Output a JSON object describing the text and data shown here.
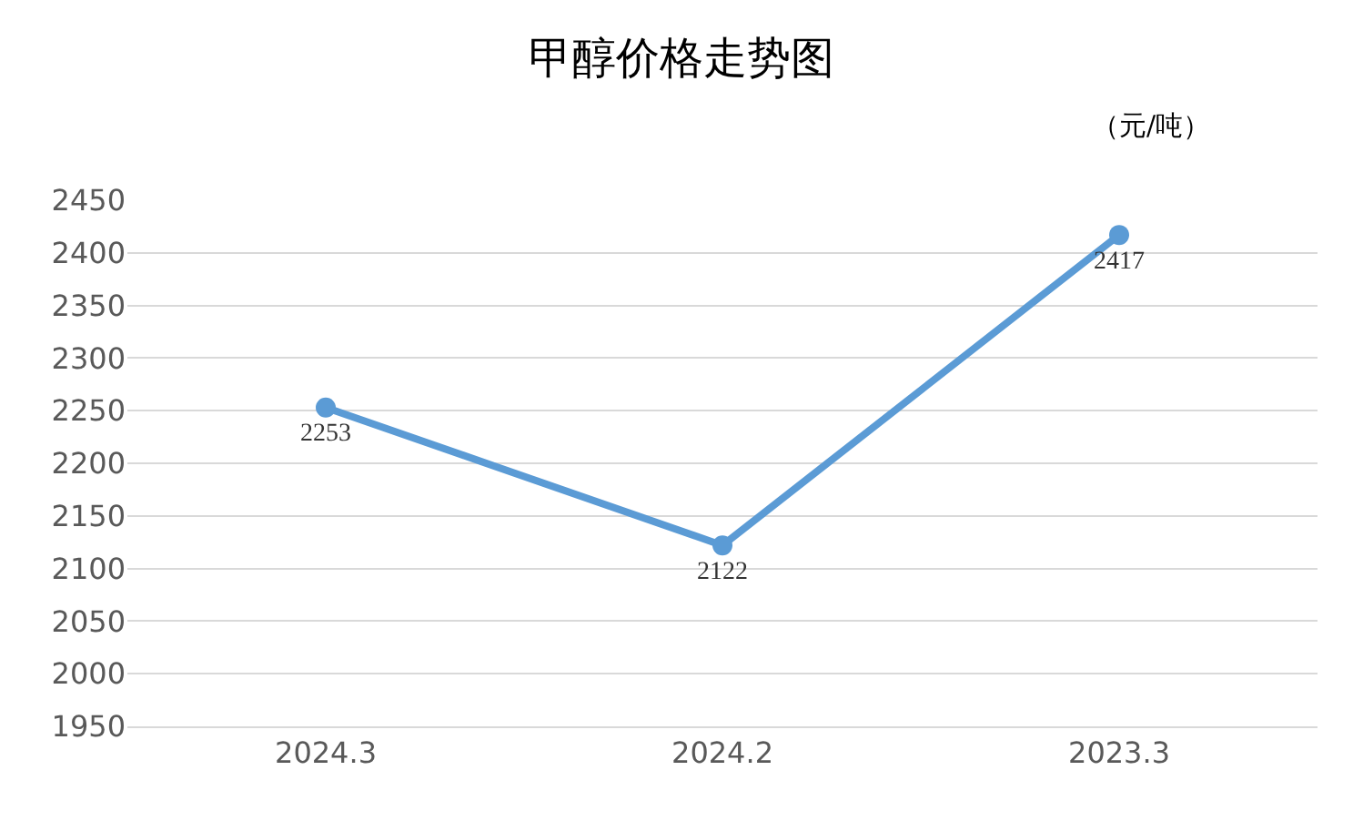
{
  "chart_data": {
    "type": "line",
    "title": "甲醇价格走势图",
    "annotations": [
      "（元/吨）"
    ],
    "categories": [
      "2024.3",
      "2024.2",
      "2023.3"
    ],
    "series": [
      {
        "color": "#5b9bd5",
        "values": [
          2253,
          2122,
          2417
        ]
      }
    ],
    "ylim": [
      1950,
      2450
    ],
    "yticks": [
      1950,
      2000,
      2050,
      2100,
      2150,
      2200,
      2250,
      2300,
      2350,
      2400,
      2450
    ],
    "grid": "y",
    "marker": "circle",
    "line_style": "solid",
    "data_labels": true
  }
}
